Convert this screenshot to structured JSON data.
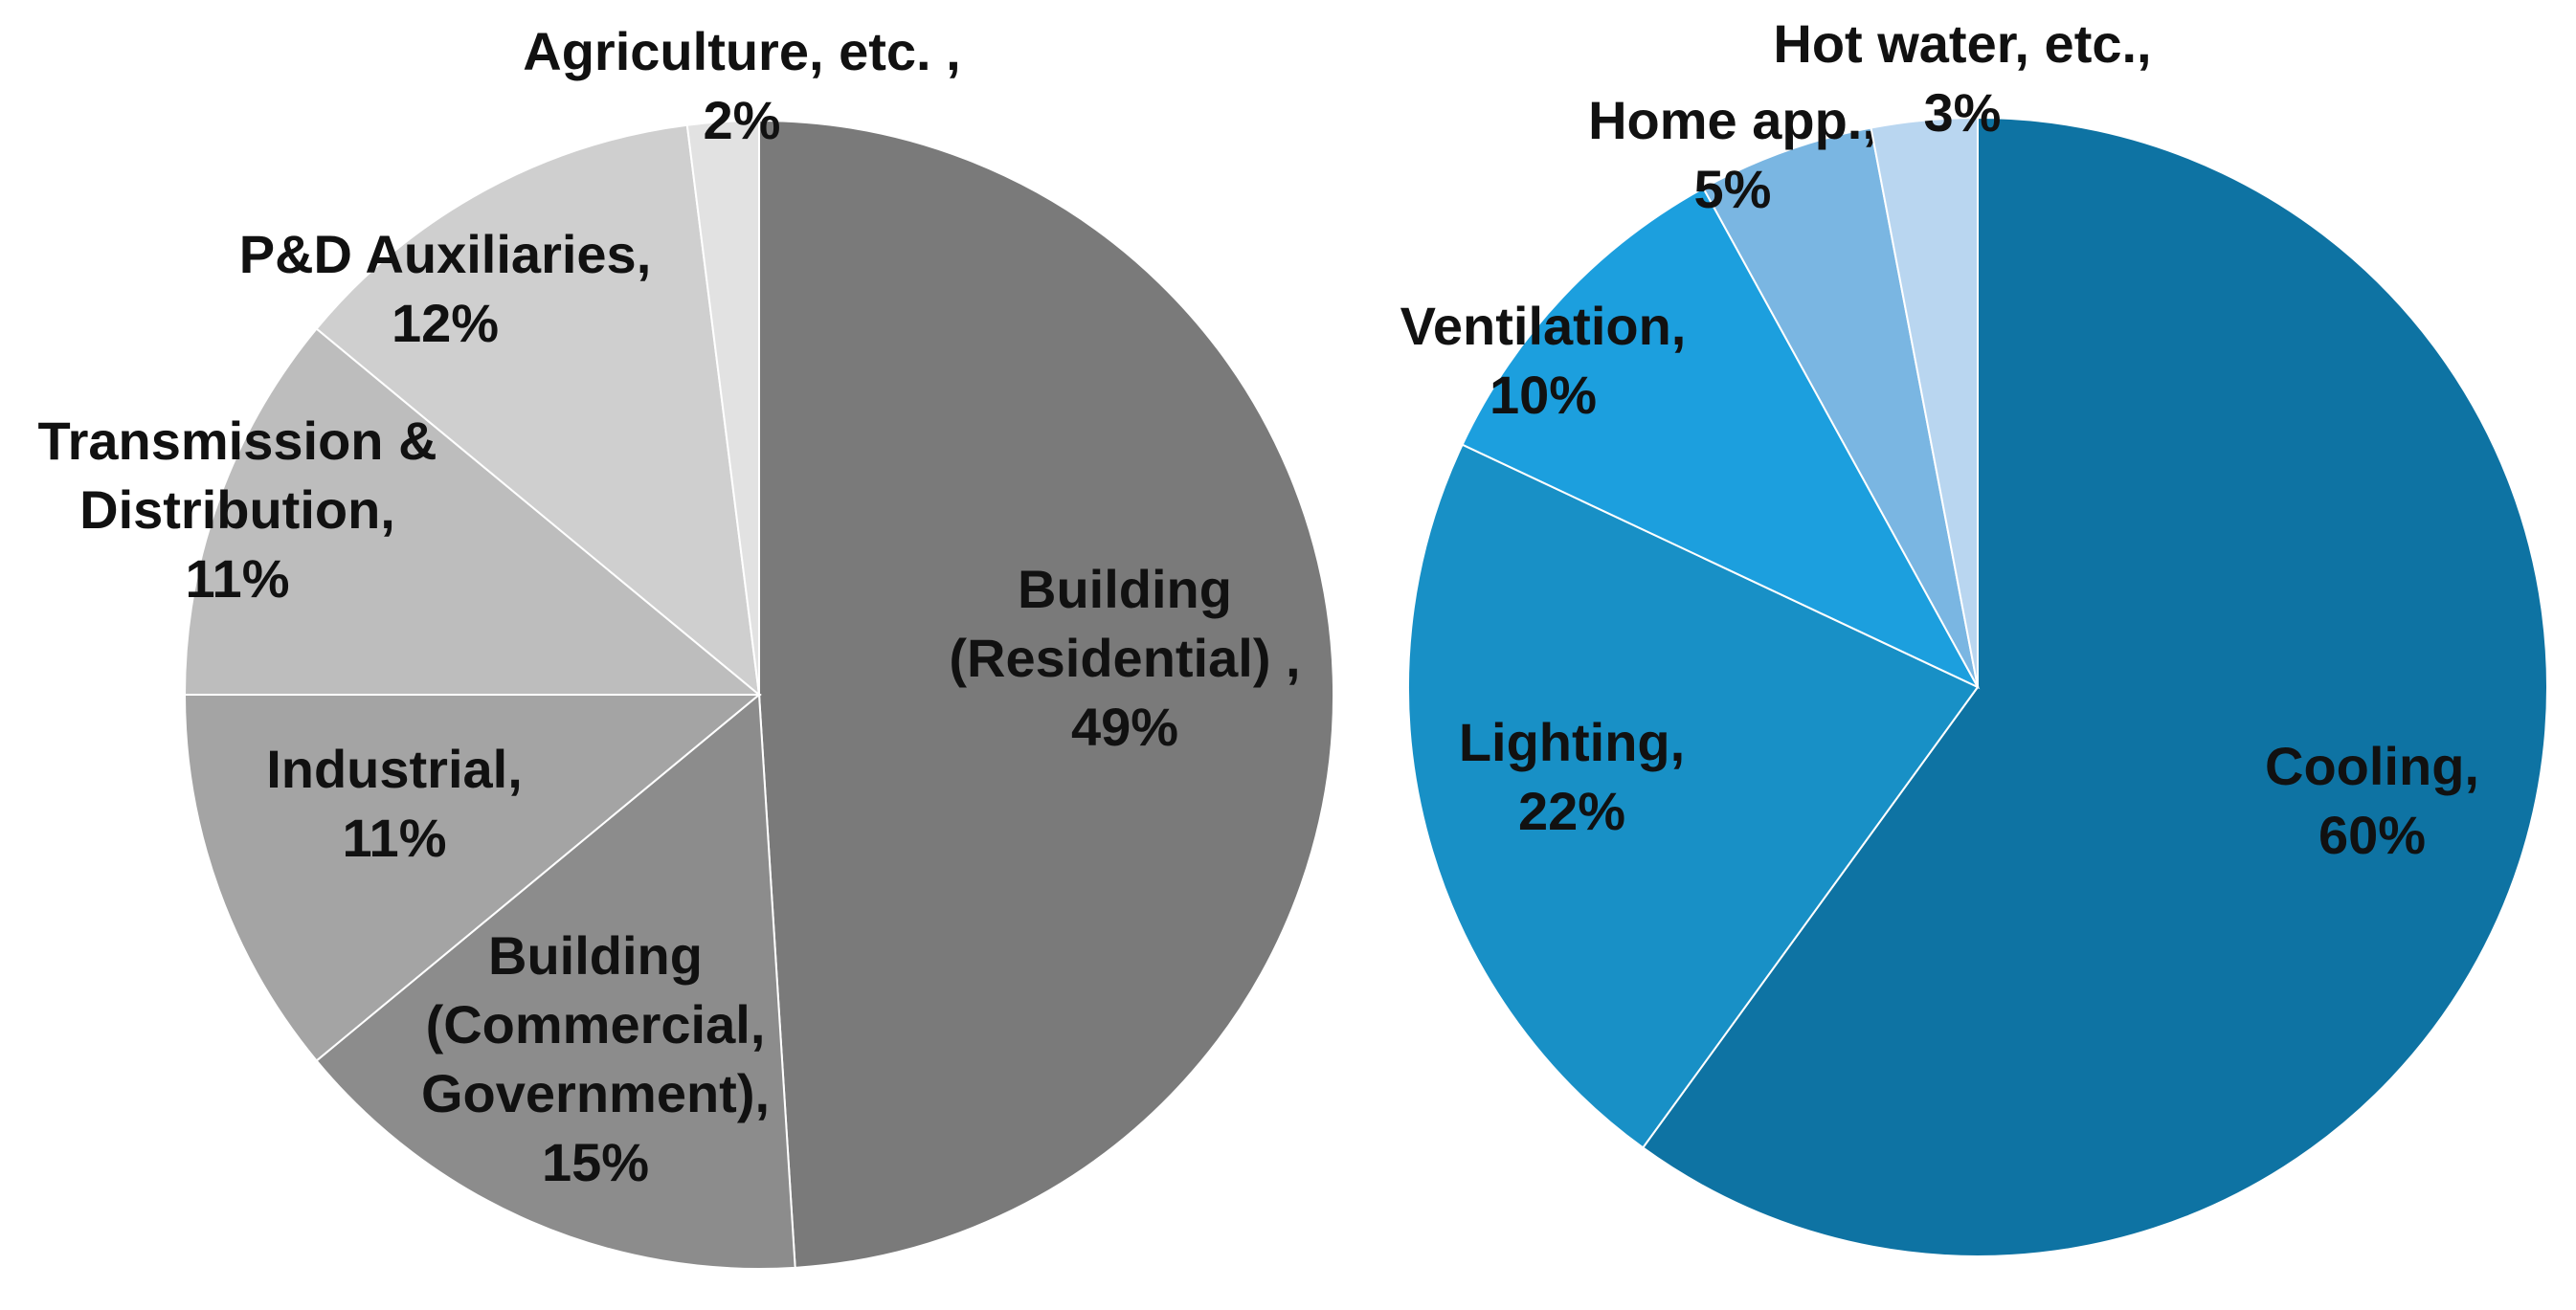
{
  "chart_data": [
    {
      "type": "pie",
      "slices": [
        {
          "label_lines": [
            "Building",
            "(Residential) ,",
            "49%"
          ],
          "value": 49,
          "color": "#7a7a7a"
        },
        {
          "label_lines": [
            "Building",
            "(Commercial,",
            "Government),",
            "15%"
          ],
          "value": 15,
          "color": "#8c8c8c"
        },
        {
          "label_lines": [
            "Industrial,",
            "11%"
          ],
          "value": 11,
          "color": "#a4a4a4"
        },
        {
          "label_lines": [
            "Transmission &",
            "Distribution,",
            "11%"
          ],
          "value": 11,
          "color": "#bdbdbd"
        },
        {
          "label_lines": [
            "P&D Auxiliaries,",
            "12%"
          ],
          "value": 12,
          "color": "#cfcfcf"
        },
        {
          "label_lines": [
            "Agriculture, etc. ,",
            "2%"
          ],
          "value": 2,
          "color": "#e2e2e2"
        }
      ]
    },
    {
      "type": "pie",
      "slices": [
        {
          "label_lines": [
            "Cooling,",
            "60%"
          ],
          "value": 60,
          "color": "#0e73a3"
        },
        {
          "label_lines": [
            "Lighting,",
            "22%"
          ],
          "value": 22,
          "color": "#1890c6"
        },
        {
          "label_lines": [
            "Ventilation,",
            "10%"
          ],
          "value": 10,
          "color": "#1c9fde"
        },
        {
          "label_lines": [
            "Home app.,",
            "5%"
          ],
          "value": 5,
          "color": "#7ab6e2"
        },
        {
          "label_lines": [
            "Hot water, etc.,",
            "3%"
          ],
          "value": 3,
          "color": "#b9d6f0"
        }
      ]
    }
  ]
}
